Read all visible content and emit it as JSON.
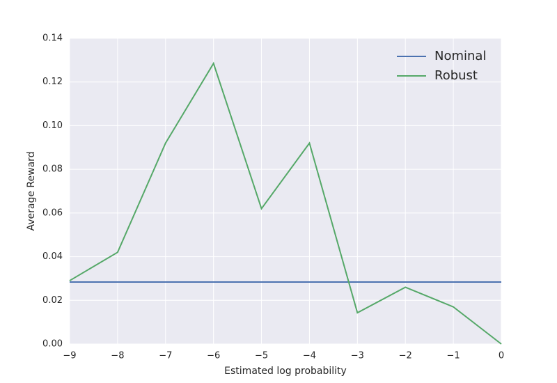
{
  "chart_data": {
    "type": "line",
    "xlabel": "Estimated log probability",
    "ylabel": "Average Reward",
    "x": [
      -9,
      -8,
      -7,
      -6,
      -5,
      -4,
      -3,
      -2,
      -1,
      0
    ],
    "series": [
      {
        "name": "Nominal",
        "color": "#4c72b0",
        "values": [
          0.0284,
          0.0284,
          0.0284,
          0.0284,
          0.0284,
          0.0284,
          0.0284,
          0.0284,
          0.0284,
          0.0284
        ]
      },
      {
        "name": "Robust",
        "color": "#55a868",
        "values": [
          0.029,
          0.042,
          0.092,
          0.1285,
          0.062,
          0.092,
          0.0143,
          0.026,
          0.017,
          0
        ]
      }
    ],
    "xlim": [
      -9,
      0
    ],
    "xticks": [
      {
        "value": -9,
        "label": "−9"
      },
      {
        "value": -8,
        "label": "−8"
      },
      {
        "value": -7,
        "label": "−7"
      },
      {
        "value": -6,
        "label": "−6"
      },
      {
        "value": -5,
        "label": "−5"
      },
      {
        "value": -4,
        "label": "−4"
      },
      {
        "value": -3,
        "label": "−3"
      },
      {
        "value": -2,
        "label": "−2"
      },
      {
        "value": -1,
        "label": "−1"
      },
      0
    ],
    "ylim": [
      0,
      0.14
    ],
    "yticks": [
      {
        "value": 0,
        "label": "0.00"
      },
      0.02,
      0.04,
      0.06,
      0.08,
      {
        "value": 0.1,
        "label": "0.10"
      },
      0.12,
      0.14
    ],
    "grid": true,
    "legend": "upper right"
  }
}
